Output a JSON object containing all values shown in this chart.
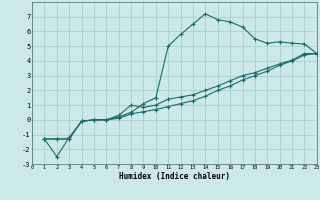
{
  "xlabel": "Humidex (Indice chaleur)",
  "bg_color": "#cce8e8",
  "grid_color": "#aad0d0",
  "line_color": "#1a6b6b",
  "xlim": [
    0,
    23
  ],
  "ylim": [
    -3,
    8
  ],
  "xticks": [
    0,
    1,
    2,
    3,
    4,
    5,
    6,
    7,
    8,
    9,
    10,
    11,
    12,
    13,
    14,
    15,
    16,
    17,
    18,
    19,
    20,
    21,
    22,
    23
  ],
  "yticks": [
    -3,
    -2,
    -1,
    0,
    1,
    2,
    3,
    4,
    5,
    6,
    7
  ],
  "line1_x": [
    1,
    2,
    3,
    4,
    5,
    6,
    7,
    8,
    9,
    10,
    11,
    12,
    13,
    14,
    15,
    16,
    17,
    18,
    19,
    20,
    21,
    22,
    23
  ],
  "line1_y": [
    -1.3,
    -2.5,
    -1.2,
    -0.1,
    0.0,
    0.0,
    0.2,
    0.5,
    1.1,
    1.5,
    5.0,
    5.8,
    6.5,
    7.2,
    6.8,
    6.65,
    6.3,
    5.5,
    5.2,
    5.3,
    5.2,
    5.15,
    4.5
  ],
  "line2_x": [
    1,
    2,
    3,
    4,
    5,
    6,
    7,
    8,
    9,
    10,
    11,
    12,
    13,
    14,
    15,
    16,
    17,
    18,
    19,
    20,
    21,
    22,
    23
  ],
  "line2_y": [
    -1.3,
    -1.3,
    -1.3,
    -0.1,
    0.0,
    0.0,
    0.1,
    0.4,
    0.55,
    0.7,
    0.9,
    1.1,
    1.3,
    1.6,
    2.0,
    2.3,
    2.7,
    3.0,
    3.3,
    3.7,
    4.0,
    4.4,
    4.5
  ],
  "line3_x": [
    1,
    2,
    3,
    4,
    5,
    6,
    7,
    8,
    9,
    10,
    11,
    12,
    13,
    14,
    15,
    16,
    17,
    18,
    19,
    20,
    21,
    22,
    23
  ],
  "line3_y": [
    -1.3,
    -1.3,
    -1.3,
    -0.1,
    0.0,
    0.0,
    0.3,
    1.0,
    0.85,
    1.0,
    1.4,
    1.55,
    1.7,
    2.0,
    2.3,
    2.65,
    3.0,
    3.2,
    3.5,
    3.8,
    4.05,
    4.5,
    4.5
  ]
}
